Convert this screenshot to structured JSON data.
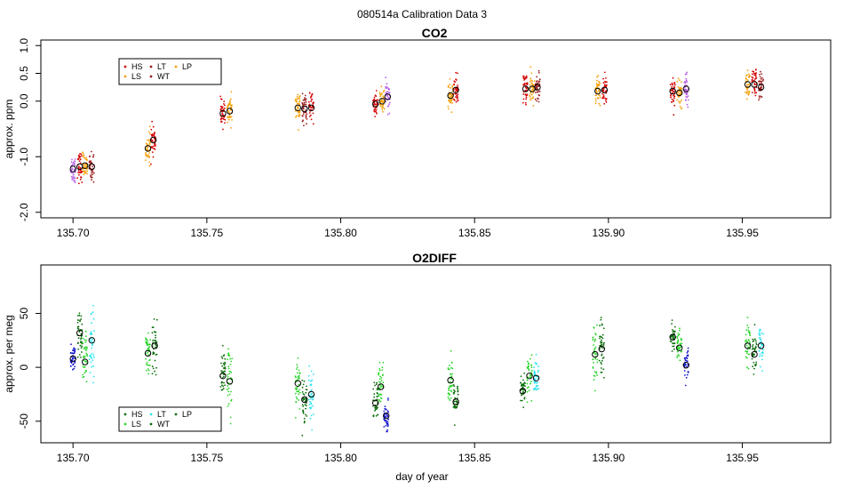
{
  "figure_title": "080514a   Calibration Data 3",
  "colors": {
    "HS": "#d40000",
    "LS": "#2bd52b",
    "LT": "#2ee3f0",
    "WT": "#0a6e0a",
    "LP": "#f5a00a",
    "LS_co2": "#f5a00a",
    "LT_co2": "#b85fe8",
    "WT_co2": "#9b1a1a",
    "LT_o2": "#2ee3f0",
    "O2_blue": "#1010d0",
    "mean_marker": "#000000"
  },
  "chart_data": [
    {
      "type": "scatter",
      "name": "CO2",
      "title": "CO2",
      "xlabel": "",
      "ylabel": "approx. ppm",
      "xlim": [
        135.688,
        135.983
      ],
      "ylim": [
        -2.1,
        1.1
      ],
      "xticks": [
        "135.70",
        "135.75",
        "135.80",
        "135.85",
        "135.90",
        "135.95"
      ],
      "xtick_values": [
        135.7,
        135.75,
        135.8,
        135.85,
        135.9,
        135.95
      ],
      "yticks": [
        "-2.0",
        "-1.0",
        "0.0",
        "0.5",
        "1.0"
      ],
      "ytick_values": [
        -2.0,
        -1.0,
        0.0,
        0.5,
        1.0
      ],
      "legend": {
        "placement": "top-left",
        "entries": [
          {
            "label": "HS",
            "color": "#d40000"
          },
          {
            "label": "LT",
            "color": "#9b1a1a"
          },
          {
            "label": "LP",
            "color": "#f5a00a"
          },
          {
            "label": "LS",
            "color": "#f5a00a"
          },
          {
            "label": "WT",
            "color": "#9b1a1a"
          }
        ]
      },
      "groups": [
        {
          "x": 135.7,
          "mean": -1.22,
          "spread": 0.55,
          "color": "#b85fe8"
        },
        {
          "x": 135.7025,
          "mean": -1.18,
          "spread": 0.5,
          "color": "#d40000"
        },
        {
          "x": 135.7045,
          "mean": -1.16,
          "spread": 0.45,
          "color": "#f5a00a"
        },
        {
          "x": 135.707,
          "mean": -1.18,
          "spread": 0.5,
          "color": "#9b1a1a"
        },
        {
          "x": 135.728,
          "mean": -0.85,
          "spread": 0.55,
          "color": "#f5a00a"
        },
        {
          "x": 135.73,
          "mean": -0.7,
          "spread": 0.5,
          "color": "#d40000"
        },
        {
          "x": 135.756,
          "mean": -0.22,
          "spread": 0.45,
          "color": "#d40000"
        },
        {
          "x": 135.7585,
          "mean": -0.18,
          "spread": 0.5,
          "color": "#f5a00a"
        },
        {
          "x": 135.784,
          "mean": -0.12,
          "spread": 0.55,
          "color": "#f5a00a"
        },
        {
          "x": 135.7865,
          "mean": -0.14,
          "spread": 0.5,
          "color": "#9b1a1a"
        },
        {
          "x": 135.789,
          "mean": -0.12,
          "spread": 0.45,
          "color": "#d40000"
        },
        {
          "x": 135.813,
          "mean": -0.05,
          "spread": 0.5,
          "color": "#d40000"
        },
        {
          "x": 135.8155,
          "mean": 0.0,
          "spread": 0.5,
          "color": "#f5a00a"
        },
        {
          "x": 135.8175,
          "mean": 0.08,
          "spread": 0.45,
          "color": "#b85fe8"
        },
        {
          "x": 135.841,
          "mean": 0.1,
          "spread": 0.5,
          "color": "#f5a00a"
        },
        {
          "x": 135.843,
          "mean": 0.2,
          "spread": 0.5,
          "color": "#d40000"
        },
        {
          "x": 135.869,
          "mean": 0.22,
          "spread": 0.55,
          "color": "#d40000"
        },
        {
          "x": 135.8715,
          "mean": 0.22,
          "spread": 0.5,
          "color": "#f5a00a"
        },
        {
          "x": 135.8735,
          "mean": 0.25,
          "spread": 0.5,
          "color": "#9b1a1a"
        },
        {
          "x": 135.896,
          "mean": 0.18,
          "spread": 0.5,
          "color": "#f5a00a"
        },
        {
          "x": 135.8985,
          "mean": 0.2,
          "spread": 0.5,
          "color": "#d40000"
        },
        {
          "x": 135.924,
          "mean": 0.18,
          "spread": 0.6,
          "color": "#d40000"
        },
        {
          "x": 135.9265,
          "mean": 0.15,
          "spread": 0.55,
          "color": "#f5a00a"
        },
        {
          "x": 135.929,
          "mean": 0.22,
          "spread": 0.5,
          "color": "#b85fe8"
        },
        {
          "x": 135.952,
          "mean": 0.3,
          "spread": 0.55,
          "color": "#f5a00a"
        },
        {
          "x": 135.9545,
          "mean": 0.3,
          "spread": 0.6,
          "color": "#d40000"
        },
        {
          "x": 135.957,
          "mean": 0.25,
          "spread": 0.5,
          "color": "#9b1a1a"
        }
      ]
    },
    {
      "type": "scatter",
      "name": "O2DIFF",
      "title": "O2DIFF",
      "xlabel": "day of year",
      "ylabel": "approx. per meg",
      "xlim": [
        135.688,
        135.983
      ],
      "ylim": [
        -70,
        95
      ],
      "xticks": [
        "135.70",
        "135.75",
        "135.80",
        "135.85",
        "135.90",
        "135.95"
      ],
      "xtick_values": [
        135.7,
        135.75,
        135.8,
        135.85,
        135.9,
        135.95
      ],
      "yticks": [
        "-50",
        "0",
        "50"
      ],
      "ytick_values": [
        -50,
        0,
        50
      ],
      "legend": {
        "placement": "bottom-left",
        "entries": [
          {
            "label": "HS",
            "color": "#0a6e0a"
          },
          {
            "label": "LT",
            "color": "#2ee3f0"
          },
          {
            "label": "LP",
            "color": "#0a6e0a"
          },
          {
            "label": "LS",
            "color": "#2bd52b"
          },
          {
            "label": "WT",
            "color": "#0a6e0a"
          }
        ]
      },
      "groups": [
        {
          "x": 135.7,
          "mean": 8,
          "spread": 25,
          "color": "#1010d0"
        },
        {
          "x": 135.7025,
          "mean": 32,
          "spread": 45,
          "color": "#0a6e0a"
        },
        {
          "x": 135.7045,
          "mean": 5,
          "spread": 50,
          "color": "#2bd52b"
        },
        {
          "x": 135.707,
          "mean": 25,
          "spread": 60,
          "color": "#2ee3f0"
        },
        {
          "x": 135.728,
          "mean": 13,
          "spread": 40,
          "color": "#2bd52b"
        },
        {
          "x": 135.7305,
          "mean": 20,
          "spread": 45,
          "color": "#0a6e0a"
        },
        {
          "x": 135.756,
          "mean": -8,
          "spread": 50,
          "color": "#0a6e0a"
        },
        {
          "x": 135.7585,
          "mean": -13,
          "spread": 60,
          "color": "#2bd52b"
        },
        {
          "x": 135.784,
          "mean": -15,
          "spread": 45,
          "color": "#2bd52b"
        },
        {
          "x": 135.7865,
          "mean": -30,
          "spread": 40,
          "color": "#0a6e0a"
        },
        {
          "x": 135.789,
          "mean": -25,
          "spread": 45,
          "color": "#2ee3f0"
        },
        {
          "x": 135.813,
          "mean": -33,
          "spread": 40,
          "color": "#0a6e0a"
        },
        {
          "x": 135.815,
          "mean": -18,
          "spread": 45,
          "color": "#2bd52b"
        },
        {
          "x": 135.817,
          "mean": -45,
          "spread": 25,
          "color": "#1010d0"
        },
        {
          "x": 135.841,
          "mean": -12,
          "spread": 40,
          "color": "#2bd52b"
        },
        {
          "x": 135.843,
          "mean": -32,
          "spread": 35,
          "color": "#0a6e0a"
        },
        {
          "x": 135.868,
          "mean": -22,
          "spread": 30,
          "color": "#0a6e0a"
        },
        {
          "x": 135.8705,
          "mean": -8,
          "spread": 40,
          "color": "#2bd52b"
        },
        {
          "x": 135.873,
          "mean": -10,
          "spread": 35,
          "color": "#2ee3f0"
        },
        {
          "x": 135.895,
          "mean": 12,
          "spread": 65,
          "color": "#2bd52b"
        },
        {
          "x": 135.8975,
          "mean": 17,
          "spread": 60,
          "color": "#0a6e0a"
        },
        {
          "x": 135.924,
          "mean": 28,
          "spread": 30,
          "color": "#0a6e0a"
        },
        {
          "x": 135.9265,
          "mean": 18,
          "spread": 30,
          "color": "#2bd52b"
        },
        {
          "x": 135.929,
          "mean": 2,
          "spread": 25,
          "color": "#1010d0"
        },
        {
          "x": 135.952,
          "mean": 20,
          "spread": 40,
          "color": "#2bd52b"
        },
        {
          "x": 135.9545,
          "mean": 12,
          "spread": 35,
          "color": "#0a6e0a"
        },
        {
          "x": 135.957,
          "mean": 20,
          "spread": 55,
          "color": "#2ee3f0"
        }
      ]
    }
  ]
}
